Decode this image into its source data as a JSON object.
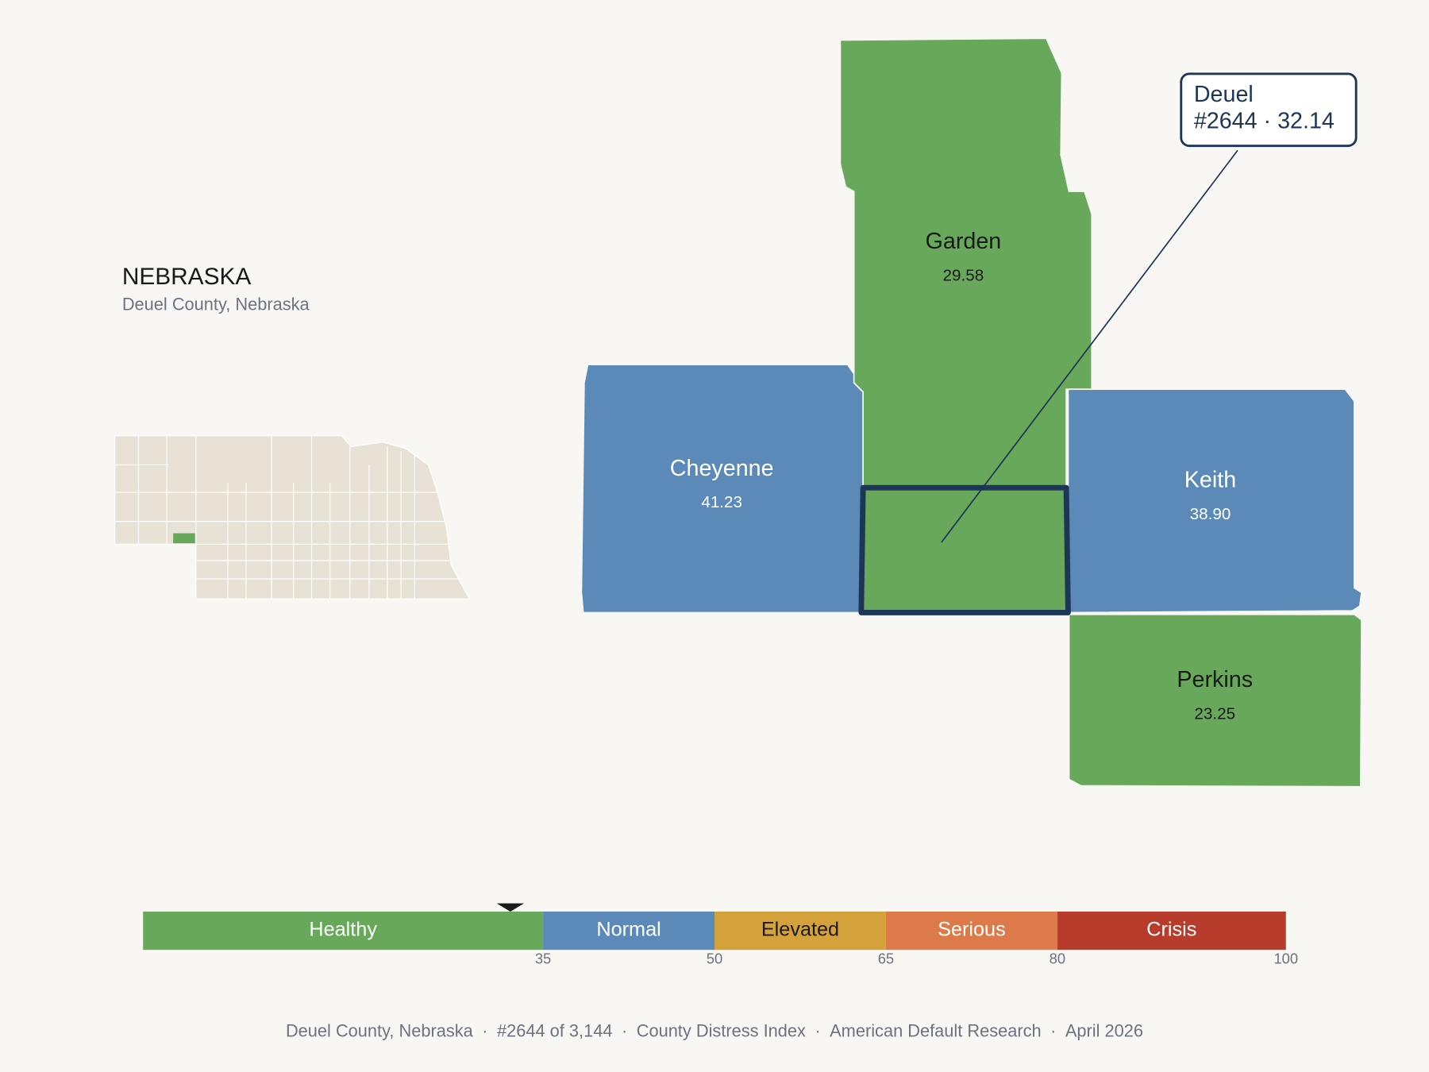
{
  "header": {
    "title": "NEBRASKA",
    "subtitle": "Deuel County, Nebraska"
  },
  "counties": [
    {
      "name": "Garden",
      "value": "29.58",
      "color": "#67a85a",
      "text_color": "#1a1a1a"
    },
    {
      "name": "Cheyenne",
      "value": "41.23",
      "color": "#5b8ab8",
      "text_color": "#ffffff"
    },
    {
      "name": "Keith",
      "value": "38.90",
      "color": "#5b8ab8",
      "text_color": "#ffffff"
    },
    {
      "name": "Perkins",
      "value": "23.25",
      "color": "#67a85a",
      "text_color": "#1a1a1a"
    },
    {
      "name": "Deuel",
      "color": "#67a85a",
      "highlight": true
    }
  ],
  "callout": {
    "title": "Deuel",
    "subtitle": "#2644 · 32.14"
  },
  "scale": {
    "lim": [
      0,
      100
    ],
    "ticks": [
      35,
      50,
      65,
      80,
      100
    ],
    "marker": 32.14,
    "segments": [
      {
        "label": "Healthy",
        "color": "#67a85a",
        "text_color": "#ffffff"
      },
      {
        "label": "Normal",
        "color": "#5b8ab8",
        "text_color": "#ffffff"
      },
      {
        "label": "Elevated",
        "color": "#d4a23a",
        "text_color": "#1a1a1a"
      },
      {
        "label": "Serious",
        "color": "#dc7a4a",
        "text_color": "#ffffff"
      },
      {
        "label": "Crisis",
        "color": "#b83c2c",
        "text_color": "#ffffff"
      }
    ]
  },
  "footer": {
    "separator": "·",
    "items": [
      "Deuel County, Nebraska",
      "#2644 of 3,144",
      "County Distress Index",
      "American Default Research",
      "April 2026"
    ]
  }
}
